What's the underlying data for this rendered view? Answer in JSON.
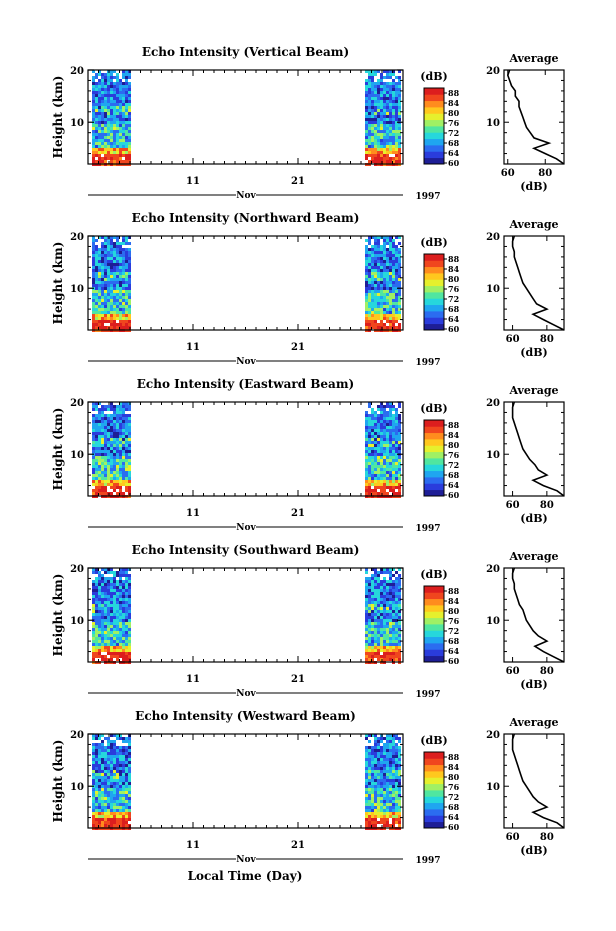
{
  "colorbar": {
    "unit_label": "(dB)",
    "tick_labels": [
      "88",
      "84",
      "80",
      "76",
      "72",
      "68",
      "64",
      "60"
    ],
    "colors": [
      "#1e1e96",
      "#2a3cdc",
      "#2b6cf0",
      "#1fa6f0",
      "#26d7dc",
      "#50e6a0",
      "#a0f064",
      "#e6f02d",
      "#ffc81e",
      "#ff8c1e",
      "#f0461e",
      "#dc1e1e"
    ]
  },
  "x_axis": {
    "tick_labels": [
      "11",
      "21"
    ],
    "month_label": "Nov",
    "year_label": "1997",
    "xlabel": "Local Time (Day)"
  },
  "avg_xlabel": "(dB)",
  "chart_data": [
    {
      "type": "heatmap",
      "title": "Echo Intensity (Vertical Beam)",
      "ylabel": "Height (km)",
      "y_tick_labels": [
        "20",
        "10"
      ],
      "ylim": [
        2,
        20
      ],
      "xlim": [
        1,
        31
      ],
      "data_day_ranges": [
        [
          1,
          5
        ],
        [
          27,
          31
        ]
      ],
      "clim": [
        60,
        88
      ],
      "average_profile": {
        "title": "Average",
        "x_tick_labels": [
          "60",
          "80"
        ],
        "xlim": [
          58,
          90
        ],
        "xlabel": "(dB)",
        "height_km": [
          2,
          3,
          4,
          5,
          6,
          7,
          8,
          9,
          10,
          11,
          12,
          13,
          14,
          15,
          16,
          17,
          18,
          19,
          20
        ],
        "intensity_db": [
          90,
          86,
          80,
          74,
          82,
          74,
          72,
          70,
          69,
          68,
          67,
          66,
          66,
          64,
          64,
          62,
          61,
          60,
          61
        ]
      }
    },
    {
      "type": "heatmap",
      "title": "Echo Intensity (Northward Beam)",
      "ylabel": "Height (km)",
      "y_tick_labels": [
        "20",
        "10"
      ],
      "ylim": [
        2,
        20
      ],
      "xlim": [
        1,
        31
      ],
      "data_day_ranges": [
        [
          1,
          5
        ],
        [
          27,
          31
        ]
      ],
      "clim": [
        60,
        88
      ],
      "average_profile": {
        "title": "Average",
        "x_tick_labels": [
          "60",
          "80"
        ],
        "xlim": [
          55,
          90
        ],
        "xlabel": "(dB)",
        "height_km": [
          2,
          3,
          4,
          5,
          6,
          7,
          8,
          9,
          10,
          11,
          12,
          13,
          14,
          15,
          16,
          17,
          18,
          19,
          20
        ],
        "intensity_db": [
          90,
          84,
          78,
          72,
          80,
          74,
          72,
          70,
          68,
          66,
          65,
          64,
          63,
          62,
          61,
          61,
          60,
          60,
          61
        ]
      }
    },
    {
      "type": "heatmap",
      "title": "Echo Intensity (Eastward Beam)",
      "ylabel": "Height (km)",
      "y_tick_labels": [
        "20",
        "10"
      ],
      "ylim": [
        2,
        20
      ],
      "xlim": [
        1,
        31
      ],
      "data_day_ranges": [
        [
          1,
          5
        ],
        [
          27,
          31
        ]
      ],
      "clim": [
        60,
        88
      ],
      "average_profile": {
        "title": "Average",
        "x_tick_labels": [
          "60",
          "80"
        ],
        "xlim": [
          55,
          90
        ],
        "xlabel": "(dB)",
        "height_km": [
          2,
          3,
          4,
          5,
          6,
          7,
          8,
          9,
          10,
          11,
          12,
          13,
          14,
          15,
          16,
          17,
          18,
          19,
          20
        ],
        "intensity_db": [
          90,
          86,
          78,
          72,
          80,
          75,
          73,
          70,
          68,
          66,
          65,
          64,
          63,
          62,
          61,
          60,
          60,
          60,
          61
        ]
      }
    },
    {
      "type": "heatmap",
      "title": "Echo Intensity (Southward Beam)",
      "ylabel": "Height (km)",
      "y_tick_labels": [
        "20",
        "10"
      ],
      "ylim": [
        2,
        20
      ],
      "xlim": [
        1,
        31
      ],
      "data_day_ranges": [
        [
          1,
          5
        ],
        [
          27,
          31
        ]
      ],
      "clim": [
        60,
        88
      ],
      "average_profile": {
        "title": "Average",
        "x_tick_labels": [
          "60",
          "80"
        ],
        "xlim": [
          55,
          90
        ],
        "xlabel": "(dB)",
        "height_km": [
          2,
          3,
          4,
          5,
          6,
          7,
          8,
          9,
          10,
          11,
          12,
          13,
          14,
          15,
          16,
          17,
          18,
          19,
          20
        ],
        "intensity_db": [
          90,
          84,
          78,
          73,
          80,
          75,
          72,
          70,
          68,
          67,
          66,
          64,
          63,
          62,
          61,
          61,
          60,
          60,
          61
        ]
      }
    },
    {
      "type": "heatmap",
      "title": "Echo Intensity (Westward Beam)",
      "ylabel": "Height (km)",
      "y_tick_labels": [
        "20",
        "10"
      ],
      "ylim": [
        2,
        20
      ],
      "xlim": [
        1,
        31
      ],
      "data_day_ranges": [
        [
          1,
          5
        ],
        [
          27,
          31
        ]
      ],
      "clim": [
        60,
        88
      ],
      "average_profile": {
        "title": "Average",
        "x_tick_labels": [
          "60",
          "80"
        ],
        "xlim": [
          55,
          90
        ],
        "xlabel": "(dB)",
        "height_km": [
          2,
          3,
          4,
          5,
          6,
          7,
          8,
          9,
          10,
          11,
          12,
          13,
          14,
          15,
          16,
          17,
          18,
          19,
          20
        ],
        "intensity_db": [
          90,
          86,
          78,
          72,
          80,
          75,
          72,
          70,
          68,
          66,
          65,
          64,
          63,
          62,
          61,
          60,
          60,
          60,
          61
        ]
      }
    }
  ]
}
